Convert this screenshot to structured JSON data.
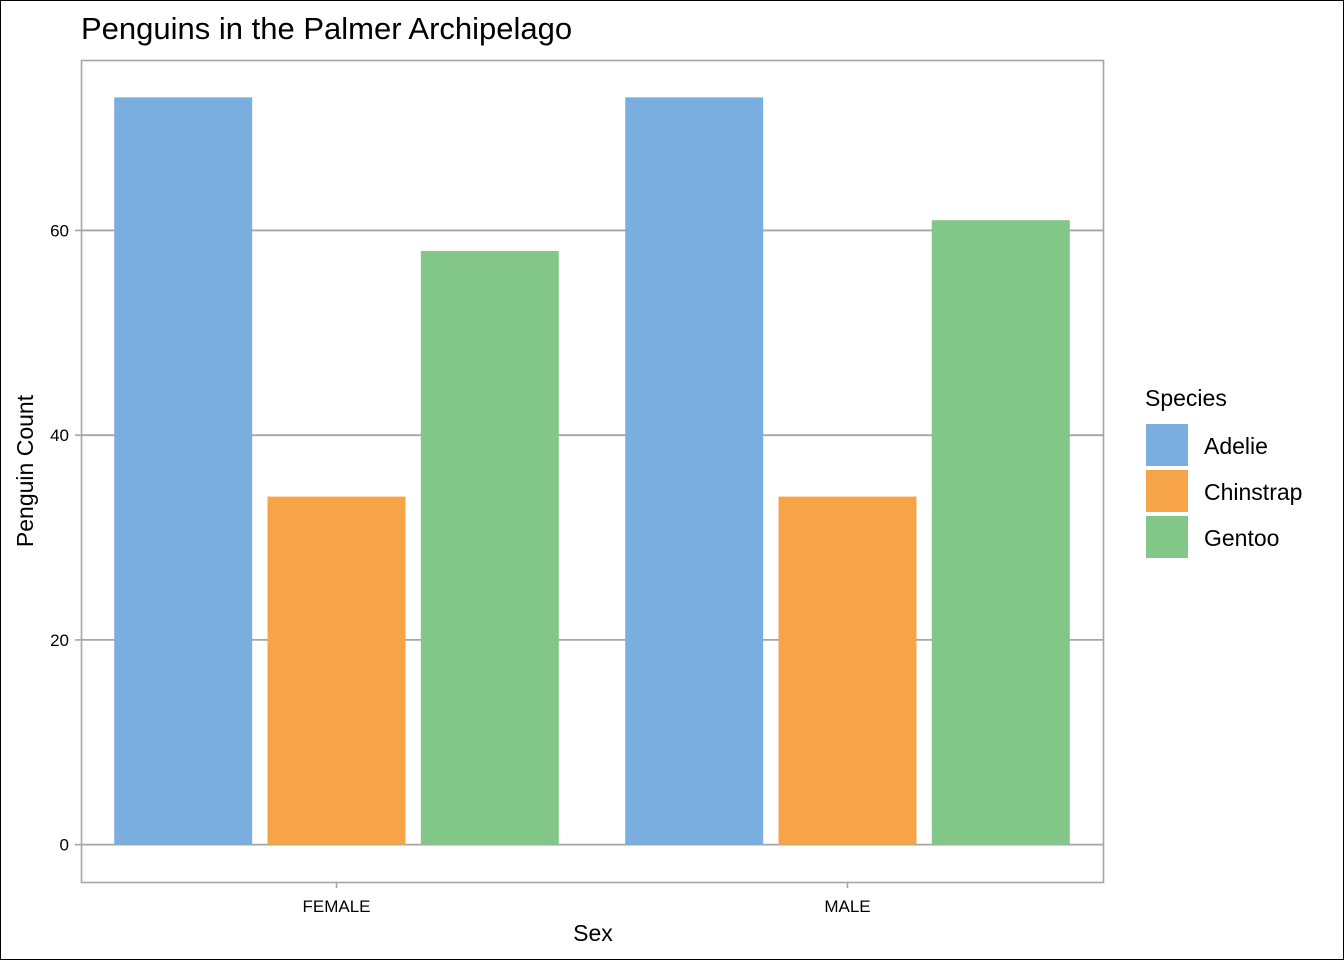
{
  "chart_data": {
    "type": "bar",
    "title": "Penguins in the Palmer Archipelago",
    "xlabel": "Sex",
    "ylabel": "Penguin Count",
    "categories": [
      "FEMALE",
      "MALE"
    ],
    "series": [
      {
        "name": "Adelie",
        "values": [
          73,
          73
        ],
        "color": "#7AAEDF"
      },
      {
        "name": "Chinstrap",
        "values": [
          34,
          34
        ],
        "color": "#F7A348"
      },
      {
        "name": "Gentoo",
        "values": [
          58,
          61
        ],
        "color": "#82C787"
      }
    ],
    "ylim": [
      -3.65,
      76.65
    ],
    "yticks": [
      0,
      20,
      40,
      60
    ],
    "ytick_labels": [
      "0",
      "20",
      "40",
      "60"
    ],
    "grid": true,
    "legend": {
      "title": "Species",
      "position": "right"
    }
  }
}
